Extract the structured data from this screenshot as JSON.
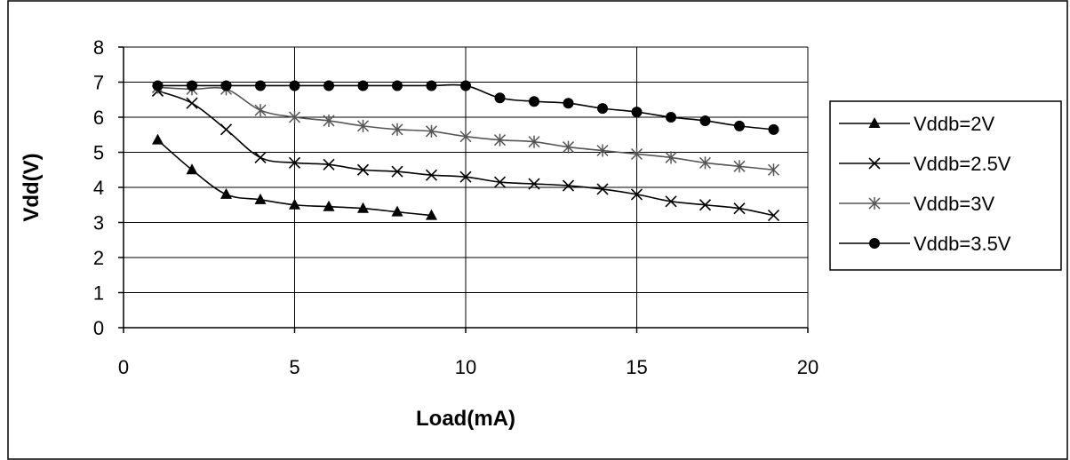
{
  "chart_data": {
    "type": "line",
    "title": "",
    "xlabel": "Load(mA)",
    "ylabel": "Vdd(V)",
    "xlim": [
      0,
      20
    ],
    "ylim": [
      0,
      8
    ],
    "xticks": [
      0,
      5,
      10,
      15,
      20
    ],
    "yticks": [
      0,
      1,
      2,
      3,
      4,
      5,
      6,
      7,
      8
    ],
    "grid": "horizontal",
    "legend_position": "right",
    "line_color": "#000000",
    "series": [
      {
        "name": "Vddb=2V",
        "marker": "triangle",
        "color": "#000000",
        "x": [
          1,
          2,
          3,
          4,
          5,
          6,
          7,
          8,
          9
        ],
        "y": [
          5.35,
          4.5,
          3.8,
          3.65,
          3.5,
          3.45,
          3.4,
          3.3,
          3.2
        ]
      },
      {
        "name": "Vddb=2.5V",
        "marker": "x",
        "color": "#000000",
        "x": [
          1,
          2,
          3,
          4,
          5,
          6,
          7,
          8,
          9,
          10,
          11,
          12,
          13,
          14,
          15,
          16,
          17,
          18,
          19
        ],
        "y": [
          6.75,
          6.4,
          5.65,
          4.85,
          4.7,
          4.65,
          4.5,
          4.45,
          4.35,
          4.3,
          4.15,
          4.1,
          4.05,
          3.95,
          3.8,
          3.6,
          3.5,
          3.4,
          3.2
        ]
      },
      {
        "name": "Vddb=3V",
        "marker": "asterisk",
        "color": "#555555",
        "x": [
          1,
          2,
          3,
          4,
          5,
          6,
          7,
          8,
          9,
          10,
          11,
          12,
          13,
          14,
          15,
          16,
          17,
          18,
          19
        ],
        "y": [
          6.85,
          6.8,
          6.8,
          6.2,
          6.0,
          5.9,
          5.75,
          5.65,
          5.6,
          5.45,
          5.35,
          5.3,
          5.15,
          5.05,
          4.95,
          4.85,
          4.7,
          4.6,
          4.5
        ]
      },
      {
        "name": "Vddb=3.5V",
        "marker": "circle",
        "color": "#000000",
        "x": [
          1,
          2,
          3,
          4,
          5,
          6,
          7,
          8,
          9,
          10,
          11,
          12,
          13,
          14,
          15,
          16,
          17,
          18,
          19
        ],
        "y": [
          6.9,
          6.9,
          6.9,
          6.9,
          6.9,
          6.9,
          6.9,
          6.9,
          6.9,
          6.9,
          6.55,
          6.45,
          6.4,
          6.25,
          6.15,
          6.0,
          5.9,
          5.75,
          5.65
        ]
      }
    ]
  }
}
